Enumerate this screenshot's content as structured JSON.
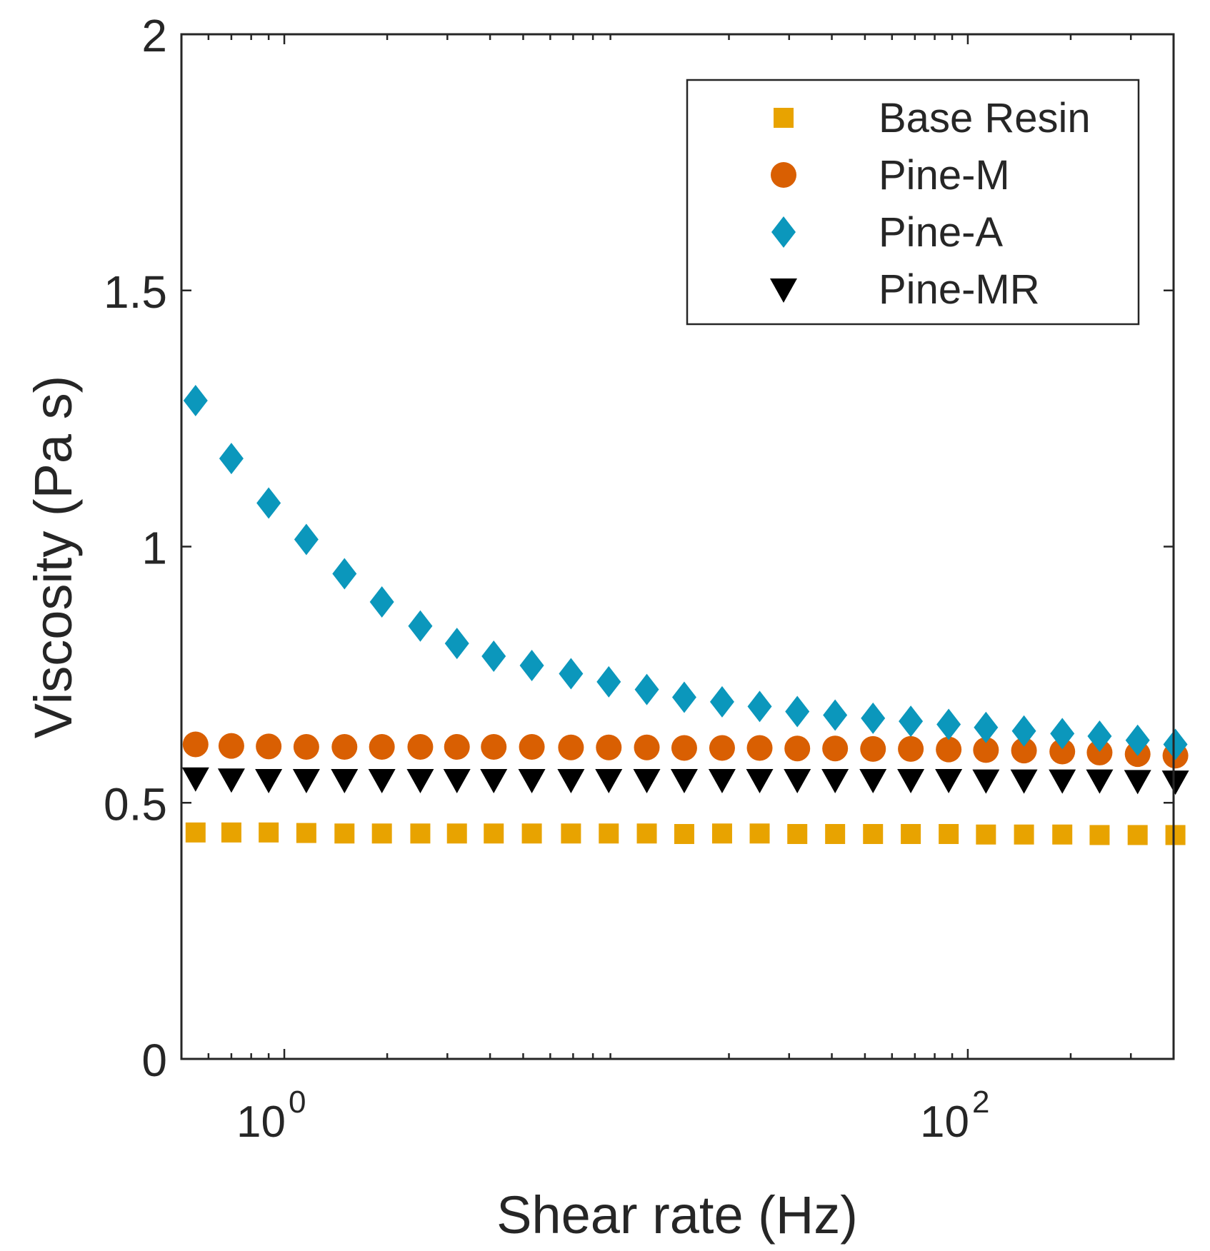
{
  "chart_data": {
    "type": "scatter",
    "title": "",
    "xlabel": "Shear rate (Hz)",
    "ylabel": "Viscosity (Pa s)",
    "xscale": "log",
    "xlim": [
      0.5,
      400
    ],
    "ylim": [
      0,
      2
    ],
    "x_ticks": [
      {
        "base": "10",
        "exp": "0",
        "value": 1
      },
      {
        "base": "10",
        "exp": "2",
        "value": 100
      }
    ],
    "y_ticks": [
      {
        "label": "0",
        "value": 0
      },
      {
        "label": "0.5",
        "value": 0.5
      },
      {
        "label": "1",
        "value": 1
      },
      {
        "label": "1.5",
        "value": 1.5
      },
      {
        "label": "2",
        "value": 2
      }
    ],
    "grid": false,
    "legend_position": "top-right",
    "x": [
      0.55,
      0.7,
      0.9,
      1.16,
      1.5,
      1.93,
      2.5,
      3.2,
      4.1,
      5.3,
      6.9,
      8.9,
      11.5,
      14.8,
      19.1,
      24.6,
      31.7,
      40.9,
      52.8,
      68.1,
      87.9,
      113,
      146,
      189,
      243,
      314,
      405
    ],
    "series": [
      {
        "name": "Base Resin",
        "marker": "square",
        "color": "#E8A300",
        "values": [
          0.442,
          0.442,
          0.442,
          0.441,
          0.44,
          0.44,
          0.44,
          0.44,
          0.44,
          0.44,
          0.44,
          0.44,
          0.44,
          0.439,
          0.44,
          0.44,
          0.439,
          0.439,
          0.439,
          0.439,
          0.439,
          0.438,
          0.438,
          0.438,
          0.437,
          0.437,
          0.437
        ]
      },
      {
        "name": "Pine-M",
        "marker": "circle",
        "color": "#D95F02",
        "values": [
          0.614,
          0.611,
          0.61,
          0.609,
          0.609,
          0.609,
          0.609,
          0.609,
          0.609,
          0.609,
          0.608,
          0.608,
          0.608,
          0.607,
          0.607,
          0.607,
          0.606,
          0.606,
          0.605,
          0.605,
          0.604,
          0.603,
          0.602,
          0.6,
          0.598,
          0.595,
          0.592
        ]
      },
      {
        "name": "Pine-A",
        "marker": "diamond",
        "color": "#0B97BC",
        "values": [
          1.285,
          1.172,
          1.085,
          1.014,
          0.947,
          0.892,
          0.845,
          0.811,
          0.786,
          0.768,
          0.752,
          0.736,
          0.721,
          0.706,
          0.697,
          0.688,
          0.678,
          0.671,
          0.665,
          0.659,
          0.653,
          0.647,
          0.64,
          0.635,
          0.63,
          0.622,
          0.614
        ]
      },
      {
        "name": "Pine-MR",
        "marker": "triangle-down",
        "color": "#000000",
        "values": [
          0.548,
          0.546,
          0.545,
          0.545,
          0.545,
          0.545,
          0.545,
          0.545,
          0.545,
          0.545,
          0.545,
          0.545,
          0.545,
          0.545,
          0.545,
          0.545,
          0.545,
          0.545,
          0.545,
          0.545,
          0.545,
          0.544,
          0.544,
          0.544,
          0.544,
          0.543,
          0.542
        ]
      }
    ]
  }
}
